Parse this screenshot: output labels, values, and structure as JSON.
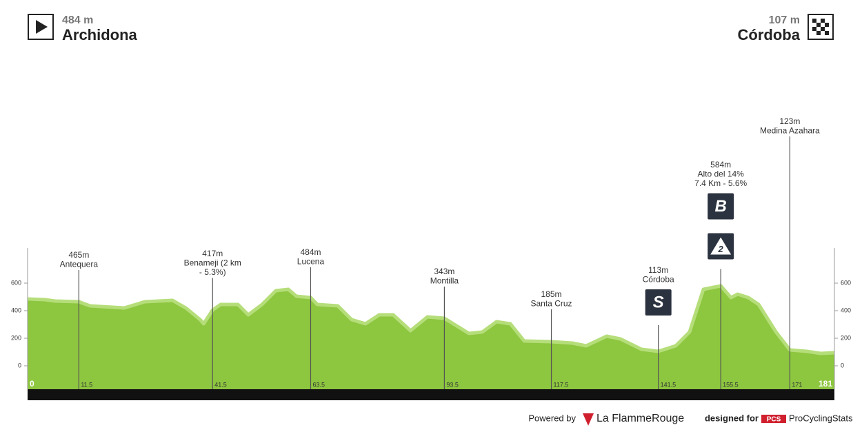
{
  "chart_data": {
    "type": "area",
    "start": {
      "elevation": "484 m",
      "name": "Archidona"
    },
    "finish": {
      "elevation": "107 m",
      "name": "Córdoba"
    },
    "x": [
      0,
      3.9,
      6.2,
      11.5,
      14,
      21.7,
      26.3,
      32.5,
      35.5,
      38.7,
      39.5,
      41.5,
      43.3,
      47.2,
      49.5,
      52.6,
      55.7,
      58.5,
      60.3,
      63.5,
      65,
      69.6,
      72.7,
      75.8,
      78.9,
      82,
      85.9,
      89.7,
      93.5,
      99,
      102,
      105.2,
      108.3,
      111.4,
      117.5,
      122.2,
      125.3,
      129.9,
      133,
      137.7,
      141.5,
      145.4,
      148.5,
      151.6,
      155.5,
      157.8,
      159.3,
      161.7,
      164,
      167.9,
      171,
      174.8,
      177.9,
      181
    ],
    "values": [
      495,
      490,
      480,
      475,
      445,
      430,
      475,
      485,
      430,
      345,
      315,
      415,
      455,
      455,
      380,
      455,
      555,
      565,
      515,
      505,
      455,
      445,
      345,
      315,
      380,
      380,
      265,
      365,
      355,
      245,
      255,
      330,
      315,
      190,
      185,
      175,
      155,
      225,
      205,
      130,
      115,
      155,
      255,
      565,
      590,
      505,
      530,
      505,
      455,
      255,
      125,
      115,
      100,
      105
    ],
    "color": "#8dc63f",
    "xlim": [
      0,
      181
    ],
    "xticks": [
      0,
      181
    ],
    "ylim": [
      -170,
      855
    ],
    "yticks": [
      0,
      200,
      400,
      600
    ],
    "markers": [
      {
        "km": 11.5,
        "lines": [
          "465m",
          "Antequera"
        ],
        "badges": []
      },
      {
        "km": 41.5,
        "lines": [
          "417m",
          "Benameji (2 km",
          "- 5.3%)"
        ],
        "badges": []
      },
      {
        "km": 63.5,
        "lines": [
          "484m",
          "Lucena"
        ],
        "badges": []
      },
      {
        "km": 93.5,
        "lines": [
          "343m",
          "Montilla"
        ],
        "badges": []
      },
      {
        "km": 117.5,
        "lines": [
          "185m",
          "Santa Cruz"
        ],
        "badges": []
      },
      {
        "km": 141.5,
        "lines": [
          "113m",
          "Córdoba"
        ],
        "badges": [
          "S"
        ]
      },
      {
        "km": 155.5,
        "lines": [
          "584m",
          "Alto del 14%",
          "7.4 Km - 5.6%"
        ],
        "badges": [
          "B",
          "2"
        ]
      },
      {
        "km": 171,
        "lines": [
          "123m",
          "Medina Azahara"
        ],
        "badges": []
      }
    ],
    "footer": {
      "powered": "Powered by",
      "brand": "La FlammeRouge",
      "designed": "designed for",
      "pcs": "PCS",
      "site": "ProCyclingStats"
    }
  }
}
